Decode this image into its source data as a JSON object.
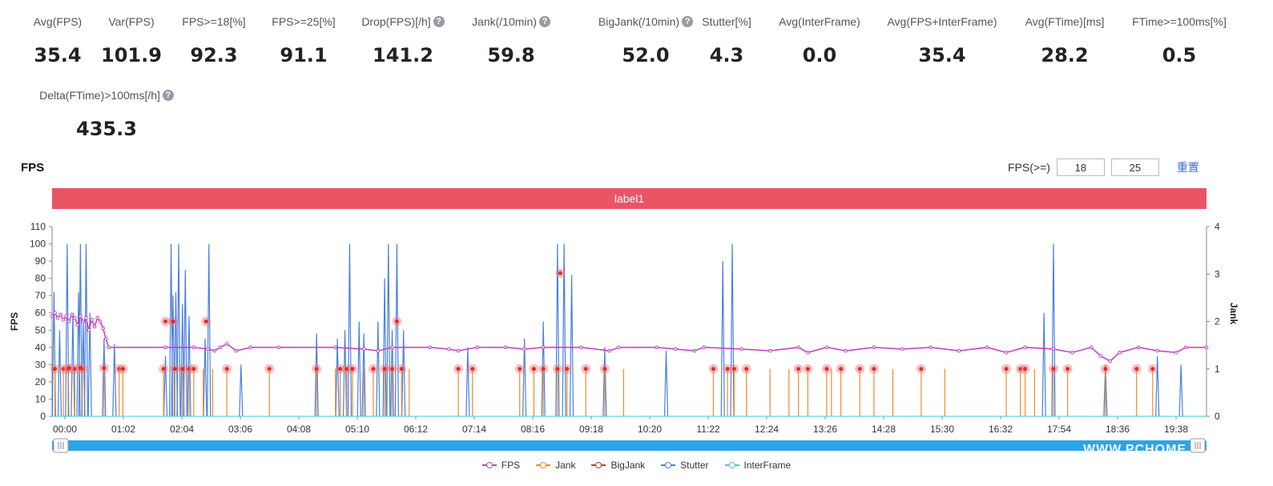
{
  "stats": [
    {
      "label": "Avg(FPS)",
      "value": "35.4",
      "help": false
    },
    {
      "label": "Var(FPS)",
      "value": "101.9",
      "help": false
    },
    {
      "label": "FPS>=18[%]",
      "value": "92.3",
      "help": false
    },
    {
      "label": "FPS>=25[%]",
      "value": "91.1",
      "help": false
    },
    {
      "label": "Drop(FPS)[/h]",
      "value": "141.2",
      "help": true
    },
    {
      "label": "Jank(/10min)",
      "value": "59.8",
      "help": true
    },
    {
      "label": "BigJank(/10min)",
      "value": "52.0",
      "help": true
    },
    {
      "label": "Stutter[%]",
      "value": "4.3",
      "help": false
    },
    {
      "label": "Avg(InterFrame)",
      "value": "0.0",
      "help": false
    },
    {
      "label": "Avg(FPS+InterFrame)",
      "value": "35.4",
      "help": false
    },
    {
      "label": "Avg(FTime)[ms]",
      "value": "28.2",
      "help": false
    },
    {
      "label": "FTime>=100ms[%]",
      "value": "0.5",
      "help": false
    },
    {
      "label": "Delta(FTime)>100ms[/h]",
      "value": "435.3",
      "help": true
    }
  ],
  "chart_title": "FPS",
  "fps_threshold": {
    "label": "FPS(>=)",
    "low": "18",
    "high": "25",
    "reset_label": "重置"
  },
  "label_bar": "label1",
  "watermark": "WWW.PCHOME",
  "colors": {
    "fps": "#c23cc2",
    "jank": "#f08a2c",
    "bigjank": "#d63030",
    "stutter": "#4a7fe0",
    "interframe": "#3cc8d8",
    "label_bar": "#ea5566",
    "slider": "#2ea3e8"
  },
  "chart_data": {
    "type": "line",
    "x_tick_labels": [
      "00:00",
      "01:02",
      "02:04",
      "03:06",
      "04:08",
      "05:10",
      "06:12",
      "07:14",
      "08:16",
      "09:18",
      "10:20",
      "11:22",
      "12:24",
      "13:26",
      "14:28",
      "15:30",
      "16:32",
      "17:54",
      "18:36",
      "19:38"
    ],
    "y_left": {
      "label": "FPS",
      "ticks": [
        "0",
        "10",
        "20",
        "30",
        "40",
        "50",
        "60",
        "70",
        "80",
        "90",
        "100",
        "110"
      ],
      "min": 0,
      "max": 110
    },
    "y_right": {
      "label": "Jank",
      "ticks": [
        "0",
        "1",
        "2",
        "3",
        "4"
      ],
      "min": 0,
      "max": 4
    },
    "legend": [
      "FPS",
      "Jank",
      "BigJank",
      "Stutter",
      "InterFrame"
    ],
    "x_range_minutes": [
      0,
      1222
    ],
    "series": [
      {
        "name": "FPS",
        "y_axis": "left",
        "points": [
          [
            0,
            58
          ],
          [
            3,
            60
          ],
          [
            6,
            57
          ],
          [
            9,
            59
          ],
          [
            12,
            56
          ],
          [
            15,
            58
          ],
          [
            18,
            55
          ],
          [
            21,
            59
          ],
          [
            24,
            57
          ],
          [
            27,
            53
          ],
          [
            30,
            58
          ],
          [
            33,
            55
          ],
          [
            36,
            57
          ],
          [
            39,
            50
          ],
          [
            42,
            56
          ],
          [
            45,
            52
          ],
          [
            48,
            57
          ],
          [
            51,
            55
          ],
          [
            54,
            51
          ],
          [
            57,
            45
          ],
          [
            60,
            40
          ],
          [
            120,
            40
          ],
          [
            150,
            40
          ],
          [
            165,
            39
          ],
          [
            172,
            38
          ],
          [
            178,
            40
          ],
          [
            185,
            42
          ],
          [
            195,
            38
          ],
          [
            210,
            40
          ],
          [
            240,
            40
          ],
          [
            300,
            40
          ],
          [
            330,
            39
          ],
          [
            345,
            38
          ],
          [
            360,
            40
          ],
          [
            400,
            40
          ],
          [
            420,
            39
          ],
          [
            430,
            38
          ],
          [
            450,
            40
          ],
          [
            480,
            40
          ],
          [
            500,
            39
          ],
          [
            520,
            40
          ],
          [
            560,
            40
          ],
          [
            590,
            38
          ],
          [
            600,
            40
          ],
          [
            640,
            40
          ],
          [
            660,
            39
          ],
          [
            680,
            38
          ],
          [
            690,
            40
          ],
          [
            730,
            39
          ],
          [
            760,
            38
          ],
          [
            790,
            40
          ],
          [
            800,
            37
          ],
          [
            820,
            40
          ],
          [
            840,
            38
          ],
          [
            870,
            40
          ],
          [
            900,
            39
          ],
          [
            930,
            40
          ],
          [
            960,
            38
          ],
          [
            990,
            40
          ],
          [
            1010,
            37
          ],
          [
            1030,
            40
          ],
          [
            1060,
            39
          ],
          [
            1080,
            37
          ],
          [
            1100,
            40
          ],
          [
            1110,
            35
          ],
          [
            1120,
            32
          ],
          [
            1130,
            37
          ],
          [
            1150,
            40
          ],
          [
            1170,
            38
          ],
          [
            1190,
            37
          ],
          [
            1200,
            40
          ],
          [
            1222,
            40
          ]
        ]
      },
      {
        "name": "Jank",
        "y_axis": "right",
        "points": [
          [
            3,
            1
          ],
          [
            12,
            1
          ],
          [
            17,
            1
          ],
          [
            24,
            1
          ],
          [
            32,
            1
          ],
          [
            55,
            1
          ],
          [
            71,
            1
          ],
          [
            75,
            1
          ],
          [
            118,
            1
          ],
          [
            130,
            1
          ],
          [
            138,
            1
          ],
          [
            145,
            1
          ],
          [
            150,
            1
          ],
          [
            160,
            1
          ],
          [
            170,
            1
          ],
          [
            185,
            1
          ],
          [
            230,
            1
          ],
          [
            280,
            1
          ],
          [
            300,
            1
          ],
          [
            305,
            1
          ],
          [
            312,
            1
          ],
          [
            318,
            1
          ],
          [
            330,
            1
          ],
          [
            340,
            1
          ],
          [
            352,
            1
          ],
          [
            360,
            1
          ],
          [
            370,
            1
          ],
          [
            378,
            1
          ],
          [
            430,
            1
          ],
          [
            445,
            1
          ],
          [
            495,
            1
          ],
          [
            510,
            1
          ],
          [
            520,
            1
          ],
          [
            535,
            1
          ],
          [
            545,
            1
          ],
          [
            565,
            1
          ],
          [
            585,
            1
          ],
          [
            605,
            1
          ],
          [
            700,
            1
          ],
          [
            715,
            1
          ],
          [
            722,
            1
          ],
          [
            735,
            1
          ],
          [
            760,
            1
          ],
          [
            780,
            1
          ],
          [
            790,
            1
          ],
          [
            800,
            1
          ],
          [
            820,
            1
          ],
          [
            825,
            1
          ],
          [
            835,
            1
          ],
          [
            855,
            1
          ],
          [
            870,
            1
          ],
          [
            890,
            1
          ],
          [
            920,
            1
          ],
          [
            945,
            1
          ],
          [
            1010,
            1
          ],
          [
            1025,
            1
          ],
          [
            1030,
            1
          ],
          [
            1040,
            1
          ],
          [
            1060,
            1
          ],
          [
            1075,
            1
          ],
          [
            1115,
            1
          ],
          [
            1148,
            1
          ],
          [
            1165,
            1
          ]
        ]
      },
      {
        "name": "BigJank",
        "y_axis": "right",
        "points": [
          [
            3,
            1
          ],
          [
            12,
            1
          ],
          [
            17,
            1
          ],
          [
            24,
            1
          ],
          [
            32,
            1
          ],
          [
            71,
            1
          ],
          [
            75,
            1
          ],
          [
            118,
            1
          ],
          [
            130,
            1
          ],
          [
            138,
            1
          ],
          [
            145,
            1
          ],
          [
            150,
            1
          ],
          [
            185,
            1
          ],
          [
            230,
            1
          ],
          [
            280,
            1
          ],
          [
            305,
            1
          ],
          [
            312,
            1
          ],
          [
            318,
            1
          ],
          [
            340,
            1
          ],
          [
            352,
            1
          ],
          [
            360,
            1
          ],
          [
            370,
            1
          ],
          [
            430,
            1
          ],
          [
            445,
            1
          ],
          [
            495,
            1
          ],
          [
            510,
            1
          ],
          [
            520,
            1
          ],
          [
            535,
            1
          ],
          [
            545,
            1
          ],
          [
            565,
            1
          ],
          [
            585,
            1
          ],
          [
            700,
            1
          ],
          [
            715,
            1
          ],
          [
            722,
            1
          ],
          [
            735,
            1
          ],
          [
            790,
            1
          ],
          [
            800,
            1
          ],
          [
            820,
            1
          ],
          [
            835,
            1
          ],
          [
            855,
            1
          ],
          [
            870,
            1
          ],
          [
            920,
            1
          ],
          [
            1010,
            1
          ],
          [
            1025,
            1
          ],
          [
            1030,
            1
          ],
          [
            1060,
            1
          ],
          [
            1075,
            1
          ],
          [
            1115,
            1
          ],
          [
            1148,
            1
          ],
          [
            1165,
            1
          ]
        ]
      },
      {
        "name": "Stutter",
        "y_axis": "left",
        "points": [
          [
            2,
            72
          ],
          [
            8,
            50
          ],
          [
            16,
            100
          ],
          [
            22,
            60
          ],
          [
            28,
            72
          ],
          [
            30,
            100
          ],
          [
            33,
            55
          ],
          [
            36,
            100
          ],
          [
            40,
            60
          ],
          [
            55,
            45
          ],
          [
            66,
            42
          ],
          [
            120,
            35
          ],
          [
            126,
            100
          ],
          [
            128,
            70
          ],
          [
            131,
            72
          ],
          [
            134,
            100
          ],
          [
            138,
            65
          ],
          [
            141,
            85
          ],
          [
            145,
            58
          ],
          [
            162,
            45
          ],
          [
            166,
            100
          ],
          [
            200,
            30
          ],
          [
            280,
            48
          ],
          [
            302,
            45
          ],
          [
            310,
            50
          ],
          [
            315,
            100
          ],
          [
            325,
            55
          ],
          [
            330,
            48
          ],
          [
            345,
            55
          ],
          [
            352,
            80
          ],
          [
            356,
            100
          ],
          [
            360,
            50
          ],
          [
            365,
            100
          ],
          [
            372,
            50
          ],
          [
            440,
            40
          ],
          [
            500,
            45
          ],
          [
            520,
            55
          ],
          [
            535,
            100
          ],
          [
            542,
            100
          ],
          [
            550,
            82
          ],
          [
            585,
            40
          ],
          [
            650,
            38
          ],
          [
            710,
            90
          ],
          [
            720,
            100
          ],
          [
            1050,
            60
          ],
          [
            1060,
            100
          ],
          [
            1115,
            30
          ],
          [
            1170,
            35
          ],
          [
            1195,
            30
          ]
        ]
      },
      {
        "name": "InterFrame",
        "y_axis": "left",
        "points": [
          [
            0,
            0
          ],
          [
            1222,
            0
          ]
        ]
      }
    ],
    "highlighted_points": [
      [
        18,
        28
      ],
      [
        30,
        28
      ],
      [
        55,
        28
      ],
      [
        120,
        55
      ],
      [
        128,
        55
      ],
      [
        163,
        55
      ],
      [
        365,
        55
      ],
      [
        538,
        83
      ]
    ]
  }
}
